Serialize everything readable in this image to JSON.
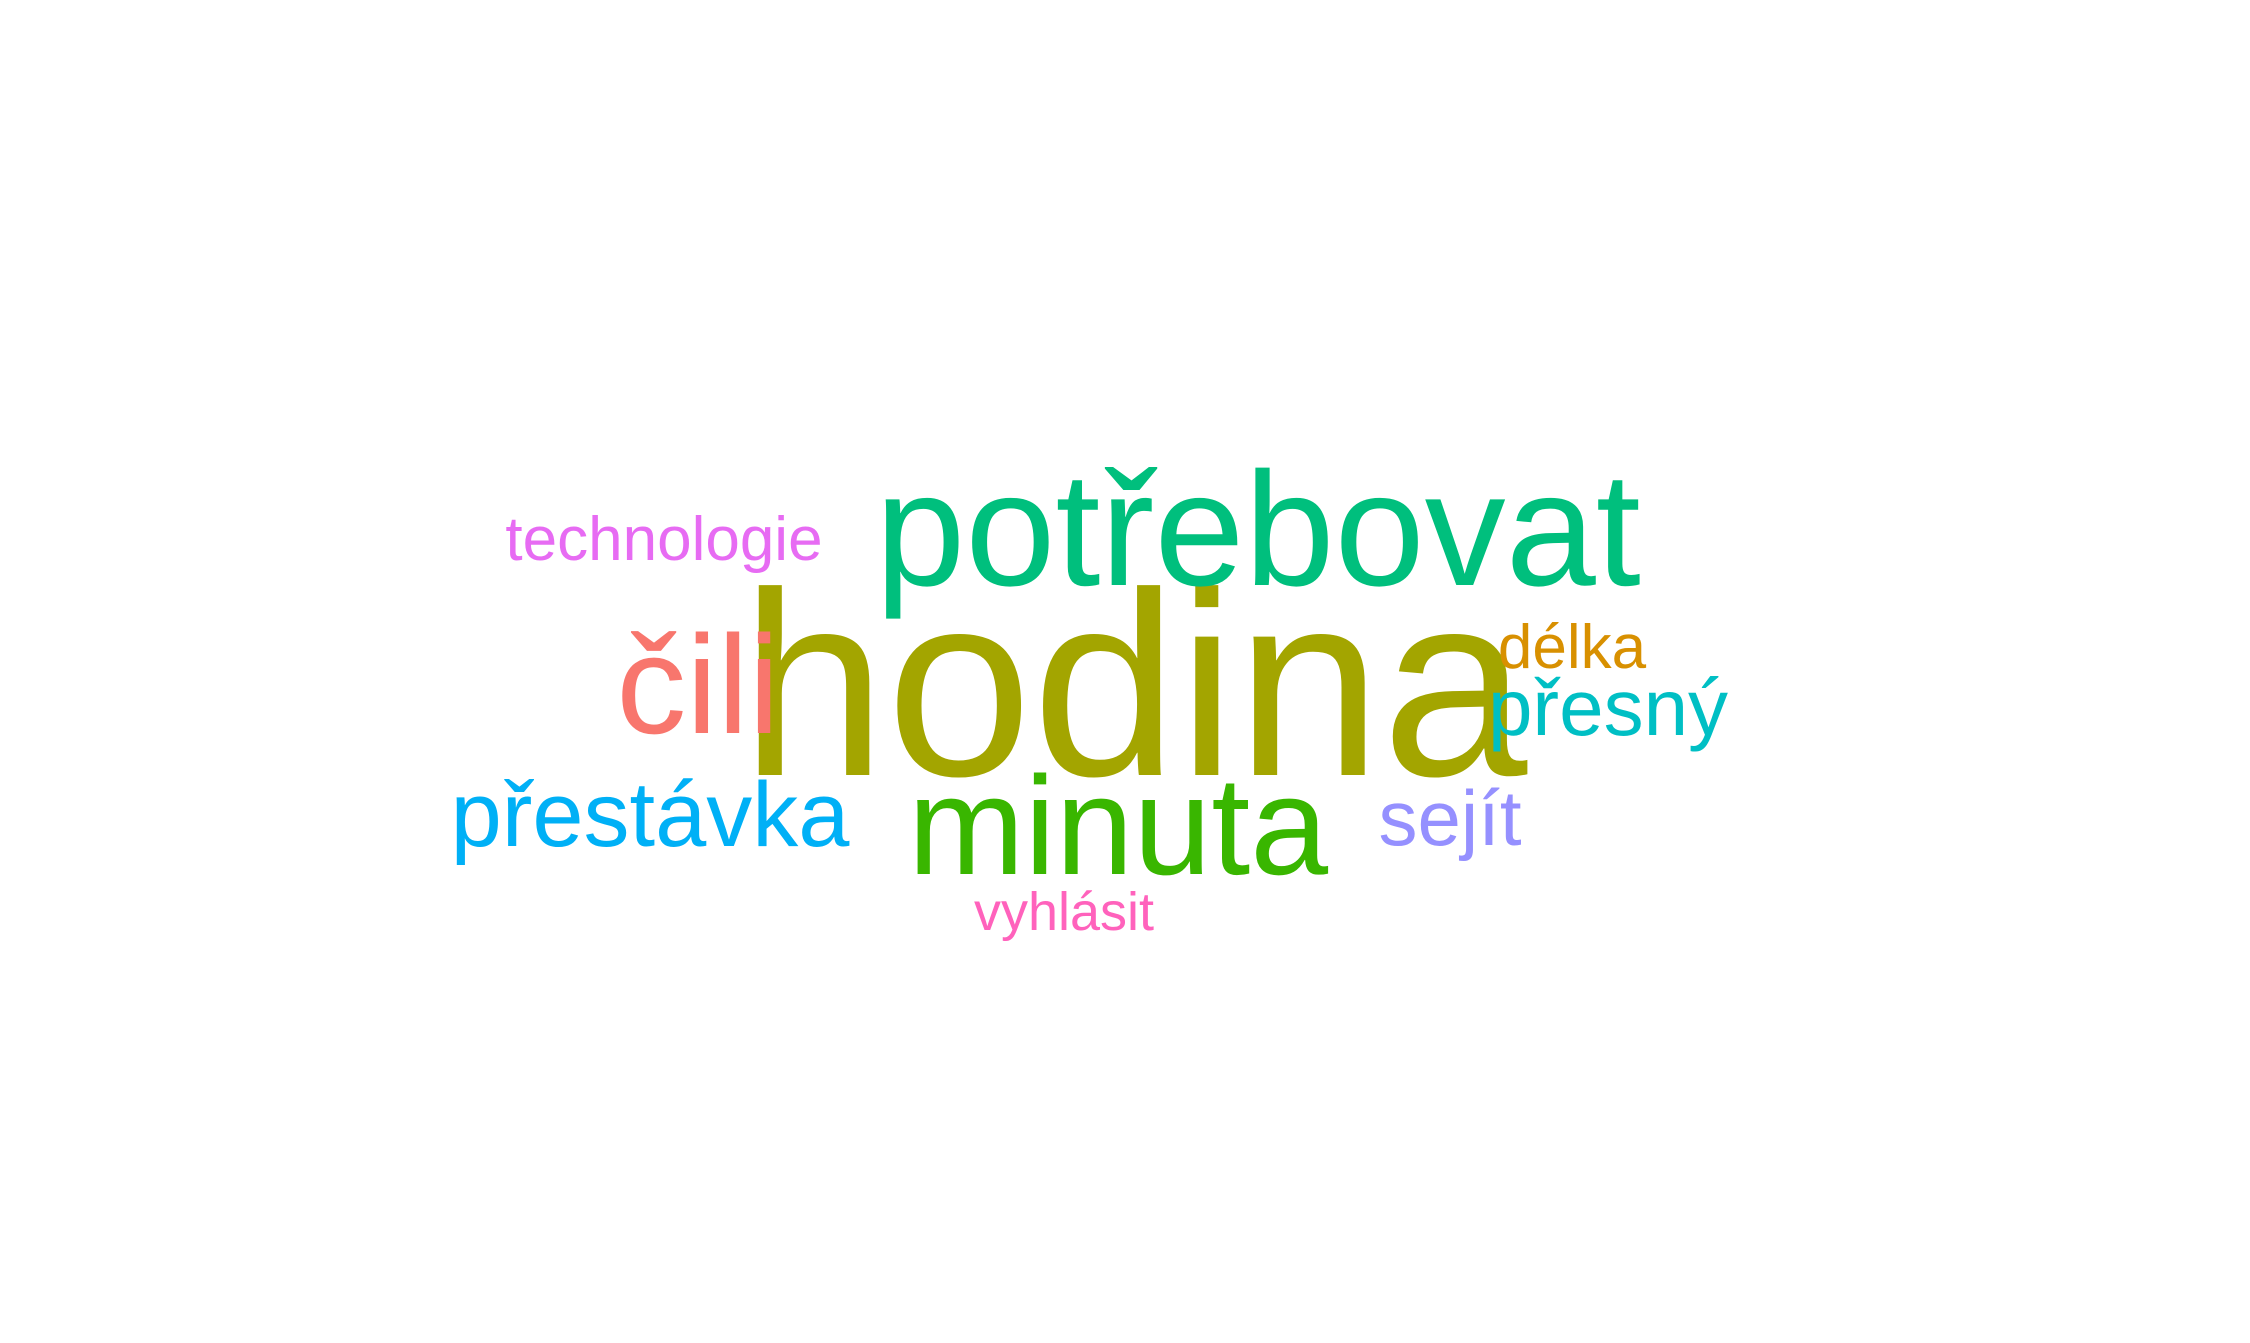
{
  "word_cloud": {
    "words": {
      "hodina": {
        "text": "hodina",
        "color": "#a3a500"
      },
      "potrebovat": {
        "text": "potřebovat",
        "color": "#00bf7d"
      },
      "minuta": {
        "text": "minuta",
        "color": "#39b600"
      },
      "cili": {
        "text": "čili",
        "color": "#f8766d"
      },
      "prestavka": {
        "text": "přestávka",
        "color": "#00b0f6"
      },
      "presny": {
        "text": "přesný",
        "color": "#00bfc4"
      },
      "sejit": {
        "text": "sejít",
        "color": "#9590ff"
      },
      "technologie": {
        "text": "technologie",
        "color": "#e76bf3"
      },
      "delka": {
        "text": "délka",
        "color": "#d89000"
      },
      "vyhlasit": {
        "text": "vyhlásit",
        "color": "#ff62bc"
      }
    }
  }
}
